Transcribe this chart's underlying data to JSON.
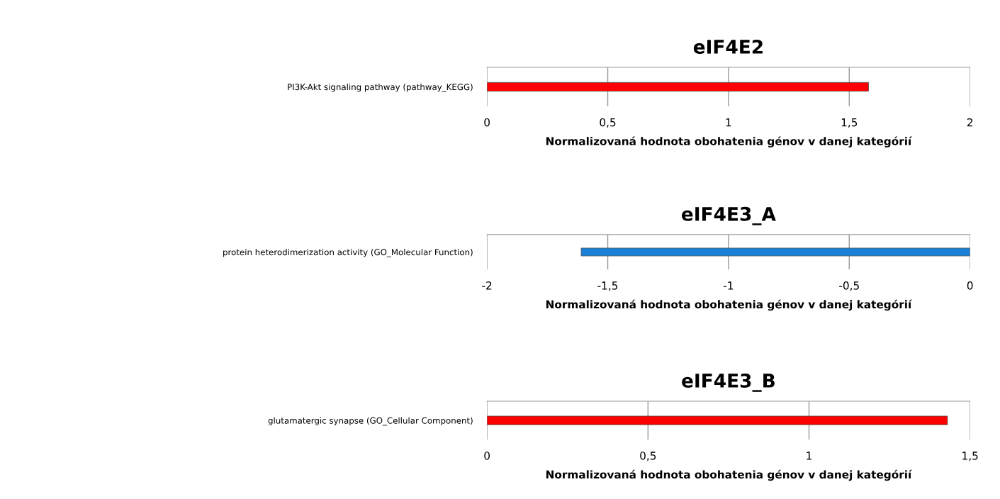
{
  "chart_data": [
    {
      "type": "bar",
      "orientation": "horizontal",
      "title": "eIF4E2",
      "xlabel": "Normalizovaná hodnota obohatenia génov v danej kategórií",
      "categories": [
        "PI3K-Akt signaling pathway (pathway_KEGG)"
      ],
      "values": [
        1.58
      ],
      "color": "#ff0000",
      "xlim": [
        0,
        2
      ],
      "xticks": [
        0,
        {
          "value": 0.5,
          "label": "0,5"
        },
        1,
        {
          "value": 1.5,
          "label": "1,5"
        },
        2
      ],
      "grid": "x"
    },
    {
      "type": "bar",
      "orientation": "horizontal",
      "title": "eIF4E3_A",
      "xlabel": "Normalizovaná hodnota obohatenia génov v danej kategórií",
      "categories": [
        "protein heterodimerization activity (GO_Molecular Function)"
      ],
      "values": [
        -1.61
      ],
      "color": "#1a80d8",
      "xlim": [
        -2,
        0
      ],
      "xticks": [
        -2,
        {
          "value": -1.5,
          "label": "-1,5"
        },
        -1,
        {
          "value": -0.5,
          "label": "-0,5"
        },
        0
      ],
      "grid": "x"
    },
    {
      "type": "bar",
      "orientation": "horizontal",
      "title": "eIF4E3_B",
      "xlabel": "Normalizovaná hodnota obohatenia génov v danej kategórií",
      "categories": [
        "glutamatergic synapse (GO_Cellular Component)"
      ],
      "values": [
        1.43
      ],
      "color": "#ff0000",
      "xlim": [
        0,
        1.5
      ],
      "xticks": [
        0,
        {
          "value": 0.5,
          "label": "0,5"
        },
        1,
        {
          "value": 1.5,
          "label": "1,5"
        }
      ],
      "grid": "x"
    }
  ]
}
